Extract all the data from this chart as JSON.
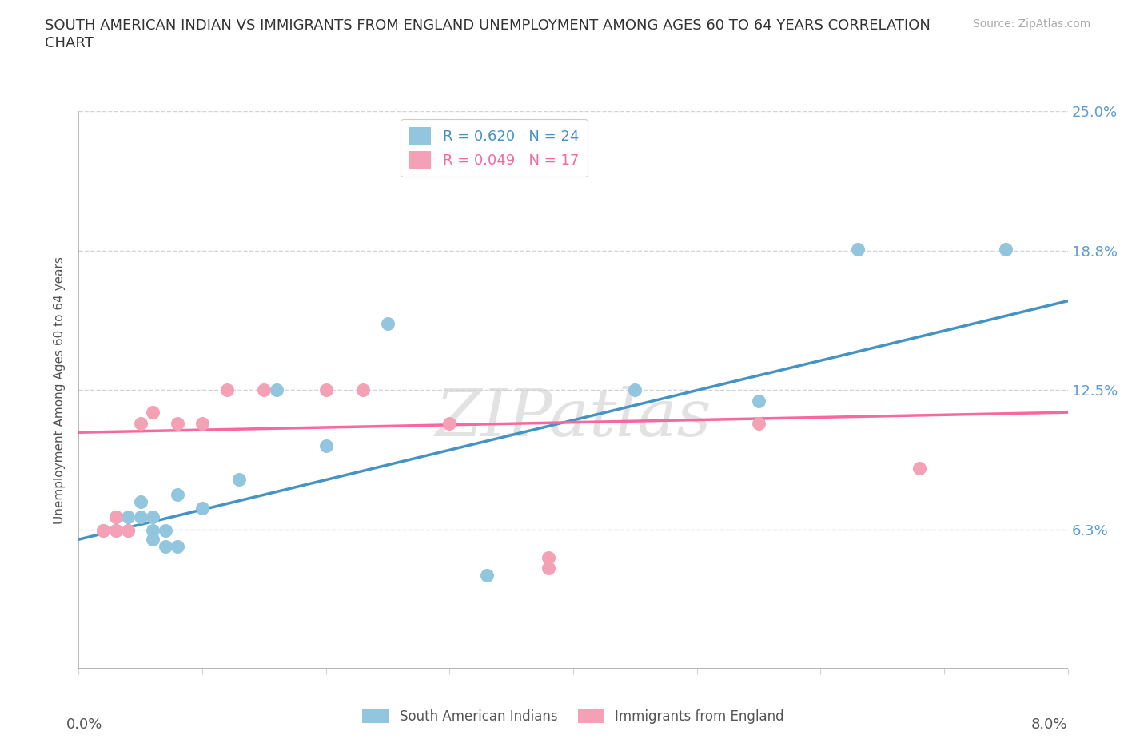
{
  "title_line1": "SOUTH AMERICAN INDIAN VS IMMIGRANTS FROM ENGLAND UNEMPLOYMENT AMONG AGES 60 TO 64 YEARS CORRELATION",
  "title_line2": "CHART",
  "source_text": "Source: ZipAtlas.com",
  "ylabel": "Unemployment Among Ages 60 to 64 years",
  "watermark": "ZIPatlas",
  "x_min": 0.0,
  "x_max": 0.08,
  "y_min": 0.0,
  "y_max": 0.25,
  "legend_r1": "R = 0.620",
  "legend_n1": "N = 24",
  "legend_r2": "R = 0.049",
  "legend_n2": "N = 17",
  "blue_color": "#92c5de",
  "pink_color": "#f4a0b5",
  "blue_line_color": "#4393c3",
  "pink_line_color": "#f768a1",
  "y_tick_vals": [
    0.0,
    0.0625,
    0.125,
    0.1875,
    0.25
  ],
  "y_tick_labels": [
    "",
    "6.3%",
    "12.5%",
    "18.8%",
    "25.0%"
  ],
  "x_tick_vals": [
    0.0,
    0.01,
    0.02,
    0.03,
    0.04,
    0.05,
    0.06,
    0.07,
    0.08
  ],
  "blue_scatter": [
    [
      0.002,
      0.062
    ],
    [
      0.003,
      0.062
    ],
    [
      0.003,
      0.068
    ],
    [
      0.004,
      0.062
    ],
    [
      0.004,
      0.068
    ],
    [
      0.005,
      0.068
    ],
    [
      0.005,
      0.075
    ],
    [
      0.006,
      0.058
    ],
    [
      0.006,
      0.062
    ],
    [
      0.006,
      0.068
    ],
    [
      0.007,
      0.055
    ],
    [
      0.007,
      0.062
    ],
    [
      0.008,
      0.055
    ],
    [
      0.008,
      0.078
    ],
    [
      0.01,
      0.072
    ],
    [
      0.013,
      0.085
    ],
    [
      0.016,
      0.125
    ],
    [
      0.02,
      0.1
    ],
    [
      0.025,
      0.155
    ],
    [
      0.033,
      0.042
    ],
    [
      0.045,
      0.125
    ],
    [
      0.055,
      0.12
    ],
    [
      0.063,
      0.188
    ],
    [
      0.075,
      0.188
    ]
  ],
  "pink_scatter": [
    [
      0.002,
      0.062
    ],
    [
      0.003,
      0.062
    ],
    [
      0.003,
      0.068
    ],
    [
      0.004,
      0.062
    ],
    [
      0.005,
      0.11
    ],
    [
      0.006,
      0.115
    ],
    [
      0.008,
      0.11
    ],
    [
      0.01,
      0.11
    ],
    [
      0.012,
      0.125
    ],
    [
      0.015,
      0.125
    ],
    [
      0.02,
      0.125
    ],
    [
      0.023,
      0.125
    ],
    [
      0.03,
      0.11
    ],
    [
      0.038,
      0.05
    ],
    [
      0.038,
      0.045
    ],
    [
      0.055,
      0.11
    ],
    [
      0.068,
      0.09
    ]
  ],
  "blue_trendline": [
    [
      0.0,
      0.058
    ],
    [
      0.08,
      0.165
    ]
  ],
  "pink_trendline": [
    [
      0.0,
      0.106
    ],
    [
      0.08,
      0.115
    ]
  ]
}
